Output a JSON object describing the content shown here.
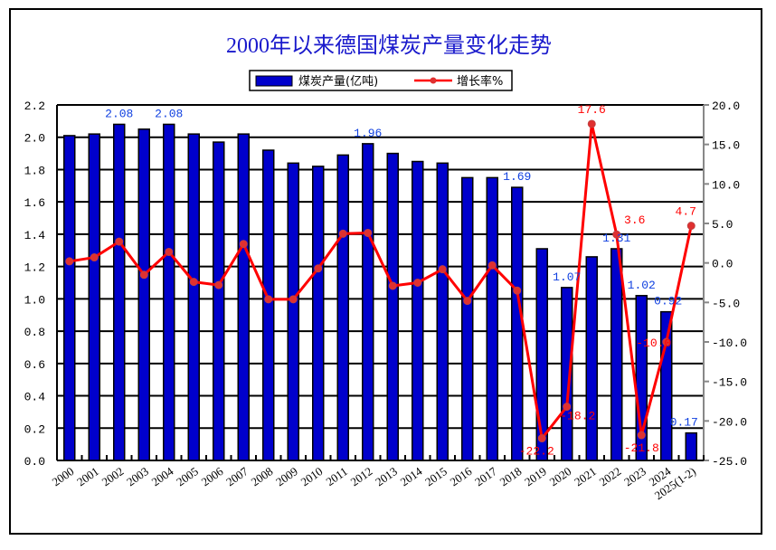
{
  "chart_data": {
    "type": "bar+line",
    "title": "2000年以来德国煤炭产量变化走势",
    "categories": [
      "2000",
      "2001",
      "2002",
      "2003",
      "2004",
      "2005",
      "2006",
      "2007",
      "2008",
      "2009",
      "2010",
      "2011",
      "2012",
      "2013",
      "2014",
      "2015",
      "2016",
      "2017",
      "2018",
      "2019",
      "2020",
      "2021",
      "2022",
      "2023",
      "2024",
      "2025(1-2)"
    ],
    "series": [
      {
        "name": "煤炭产量(亿吨)",
        "type": "bar",
        "axis": "left",
        "color": "#0000cc",
        "values": [
          2.01,
          2.02,
          2.08,
          2.05,
          2.08,
          2.02,
          1.97,
          2.02,
          1.92,
          1.84,
          1.82,
          1.89,
          1.96,
          1.9,
          1.85,
          1.84,
          1.75,
          1.75,
          1.69,
          1.31,
          1.07,
          1.26,
          1.31,
          1.02,
          0.92,
          0.17
        ],
        "labels": {
          "2002": "2.08",
          "2004": "2.08",
          "2012": "1.96",
          "2018": "1.69",
          "2020": "1.07",
          "2022": "1.31",
          "2023": "1.02",
          "2024": "0.92",
          "2025(1-2)": "0.17"
        }
      },
      {
        "name": "增长率%",
        "type": "line",
        "axis": "right",
        "color": "#ff0000",
        "values": [
          0.2,
          0.7,
          2.7,
          -1.5,
          1.4,
          -2.4,
          -2.8,
          2.4,
          -4.6,
          -4.6,
          -0.7,
          3.7,
          3.8,
          -2.9,
          -2.5,
          -0.8,
          -4.8,
          -0.3,
          -3.5,
          -22.2,
          -18.2,
          17.6,
          3.6,
          -21.8,
          -10.0,
          4.7
        ],
        "labels": {
          "2019": "-22.2",
          "2020": "-18.2",
          "2021": "17.6",
          "2022": "3.6",
          "2023": "-21.8",
          "2024": "-10.0",
          "2025(1-2)": "4.7"
        }
      }
    ],
    "left_axis": {
      "range": [
        0,
        2.2
      ],
      "step": 0.2,
      "ticks": [
        "0.0",
        "0.2",
        "0.4",
        "0.6",
        "0.8",
        "1.0",
        "1.2",
        "1.4",
        "1.6",
        "1.8",
        "2.0",
        "2.2"
      ]
    },
    "right_axis": {
      "range": [
        -25,
        20
      ],
      "step": 5,
      "ticks": [
        "-25.0",
        "-20.0",
        "-15.0",
        "-10.0",
        "-5.0",
        "0.0",
        "5.0",
        "10.0",
        "15.0",
        "20.0"
      ]
    },
    "grid": true,
    "legend_position": "top-center"
  }
}
